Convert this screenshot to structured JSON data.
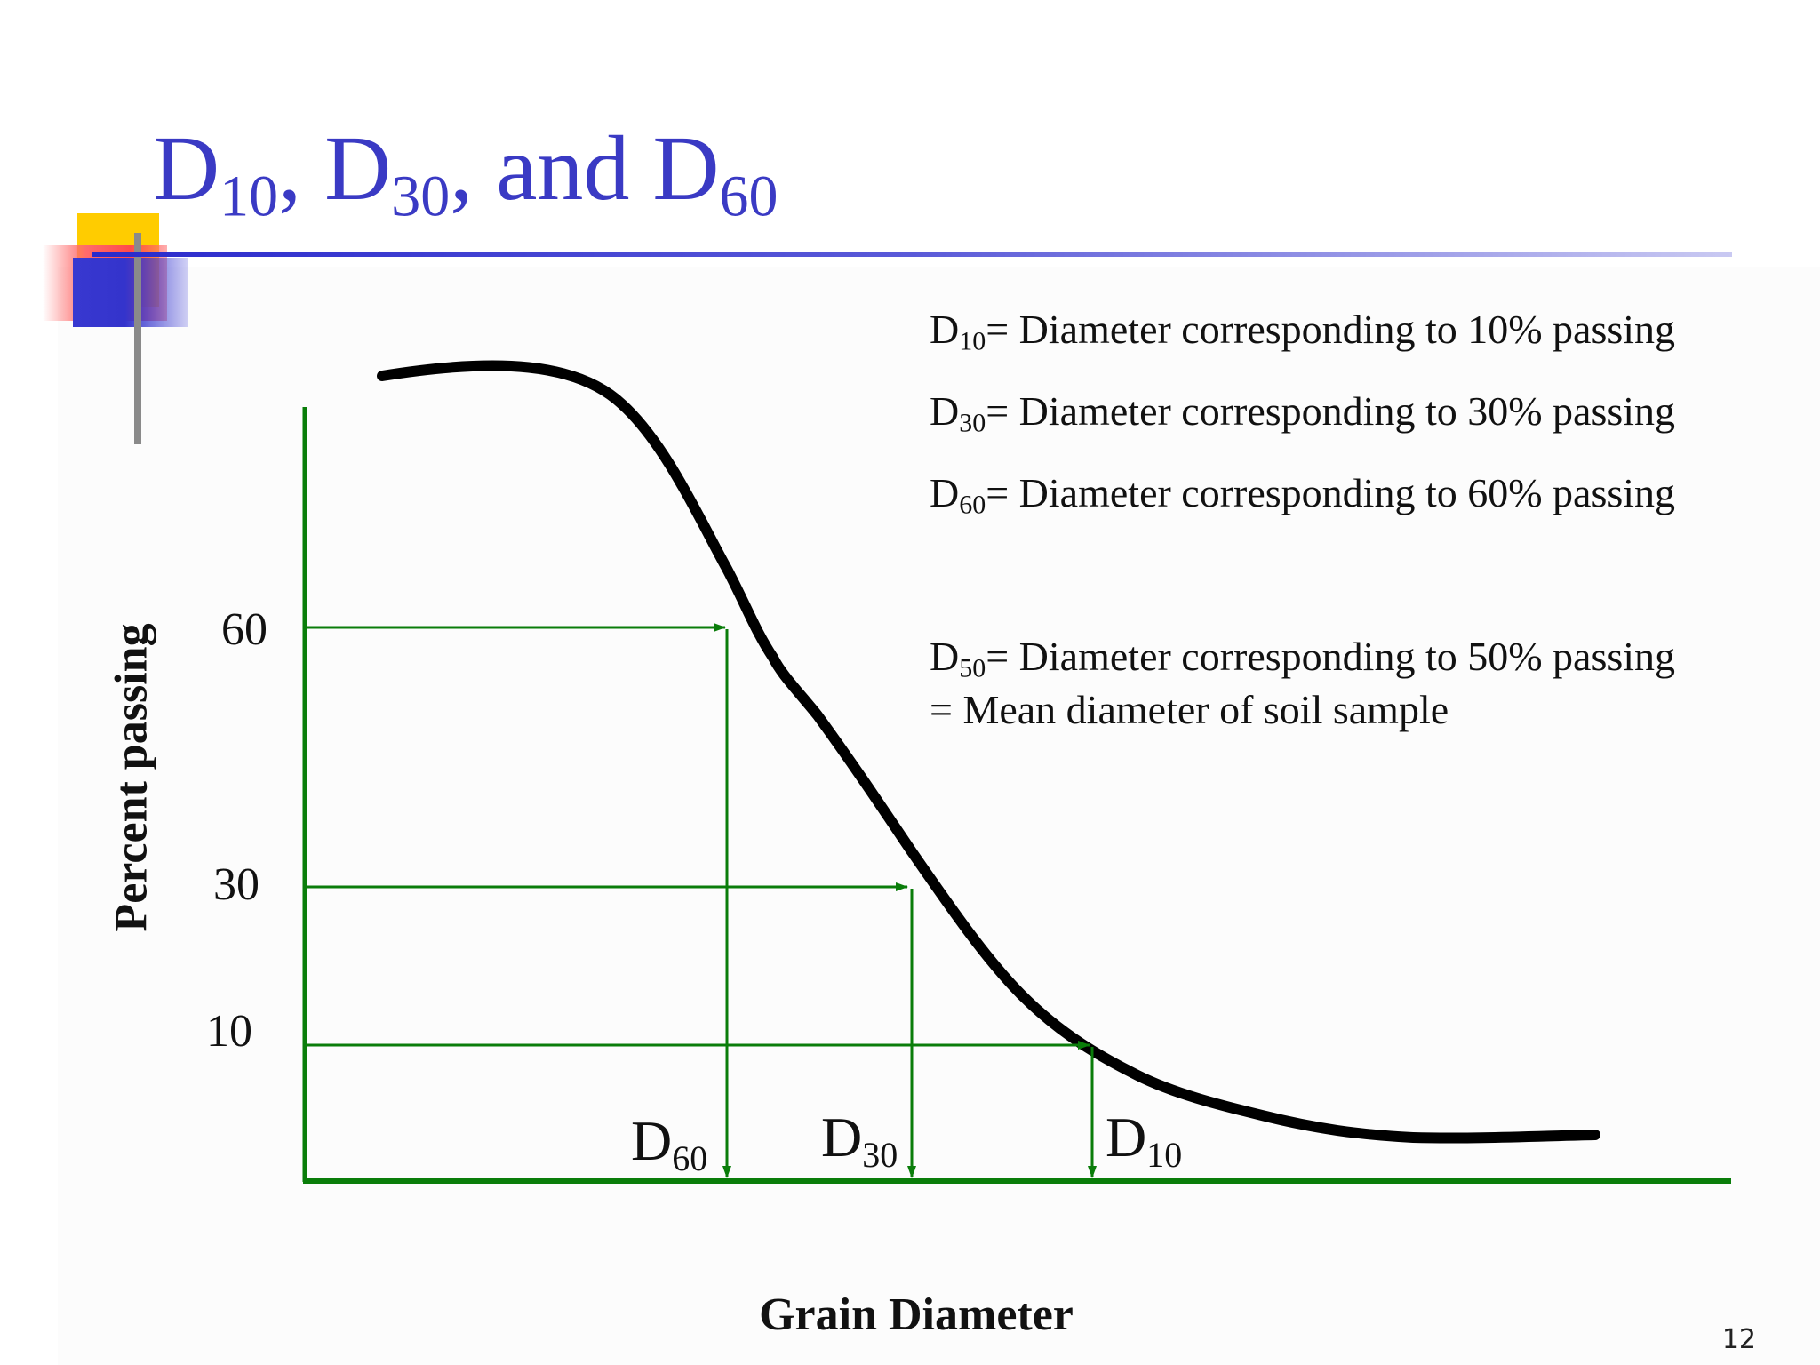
{
  "title": {
    "letter": "D",
    "sub1": "10",
    "sep1": ", D",
    "sub2": "30",
    "sep2": ", and D",
    "sub3": "60"
  },
  "definitions": [
    {
      "letter": "D",
      "sub": "10",
      "text": "= Diameter corresponding to 10% passing"
    },
    {
      "letter": "D",
      "sub": "30",
      "text": "= Diameter corresponding to 30% passing"
    },
    {
      "letter": "D",
      "sub": "60",
      "text": "= Diameter corresponding to 60% passing"
    },
    {
      "letter": "D",
      "sub": "50",
      "text": "= Diameter corresponding to 50% passing",
      "extra_line": "= Mean diameter of soil sample"
    }
  ],
  "y_axis": {
    "label": "Percent passing",
    "ticks": [
      "60",
      "30",
      "10"
    ]
  },
  "x_axis": {
    "label": "Grain Diameter"
  },
  "markers": [
    {
      "letter": "D",
      "sub": "60",
      "percent": 60
    },
    {
      "letter": "D",
      "sub": "30",
      "percent": 30
    },
    {
      "letter": "D",
      "sub": "10",
      "percent": 10
    }
  ],
  "colors": {
    "title": "#3a3ac4",
    "axis": "#0a7d0a",
    "curve": "#000000",
    "decor_yellow": "#ffcc00",
    "decor_red": "#ff4a4a",
    "decor_blue": "#3434cc"
  },
  "slide_number": "12"
}
